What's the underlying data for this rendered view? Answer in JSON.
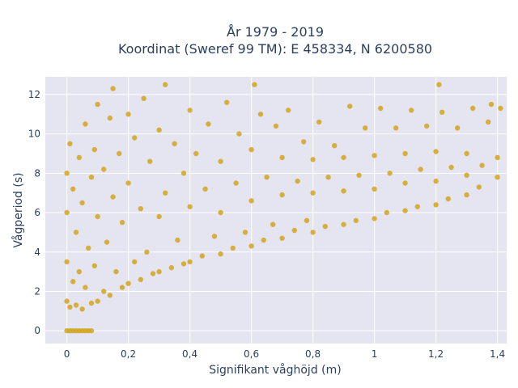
{
  "chart_data": {
    "type": "scatter",
    "title": "År 1979 - 2019",
    "subtitle": "Koordinat (Sweref 99 TM): E 458334, N 6200580",
    "xlabel": "Signifikant våghöjd (m)",
    "ylabel": "Vågperiod (s)",
    "xlim": [
      -0.07,
      1.43
    ],
    "ylim": [
      -0.65,
      12.9
    ],
    "x_ticks": [
      0,
      0.2,
      0.4,
      0.6,
      0.8,
      1,
      1.2,
      1.4
    ],
    "x_tick_labels": [
      "0",
      "0,2",
      "0,4",
      "0,6",
      "0,8",
      "1",
      "1,2",
      "1,4"
    ],
    "y_ticks": [
      0,
      2,
      4,
      6,
      8,
      10,
      12
    ],
    "y_tick_labels": [
      "0",
      "2",
      "4",
      "6",
      "8",
      "10",
      "12"
    ],
    "grid": true,
    "legend": "none",
    "marker_color": "#d4a521",
    "series": [
      {
        "values": [
          [
            0.0,
            1.5
          ],
          [
            0.0,
            3.5
          ],
          [
            0.0,
            6.0
          ],
          [
            0.0,
            8.0
          ],
          [
            0.01,
            1.2
          ],
          [
            0.01,
            9.5
          ],
          [
            0.02,
            2.5
          ],
          [
            0.02,
            7.2
          ],
          [
            0.0,
            0.0
          ],
          [
            0.01,
            0.0
          ],
          [
            0.02,
            0.0
          ],
          [
            0.03,
            0.0
          ],
          [
            0.04,
            0.0
          ],
          [
            0.05,
            0.0
          ],
          [
            0.06,
            0.0
          ],
          [
            0.07,
            0.0
          ],
          [
            0.08,
            0.0
          ],
          [
            0.03,
            1.3
          ],
          [
            0.03,
            5.0
          ],
          [
            0.04,
            3.0
          ],
          [
            0.04,
            8.8
          ],
          [
            0.05,
            1.1
          ],
          [
            0.05,
            6.5
          ],
          [
            0.06,
            2.2
          ],
          [
            0.06,
            10.5
          ],
          [
            0.07,
            4.2
          ],
          [
            0.08,
            1.4
          ],
          [
            0.08,
            7.8
          ],
          [
            0.09,
            3.3
          ],
          [
            0.09,
            9.2
          ],
          [
            0.1,
            1.5
          ],
          [
            0.1,
            5.8
          ],
          [
            0.1,
            11.5
          ],
          [
            0.12,
            2.0
          ],
          [
            0.12,
            8.2
          ],
          [
            0.13,
            4.5
          ],
          [
            0.14,
            1.8
          ],
          [
            0.14,
            10.8
          ],
          [
            0.15,
            6.8
          ],
          [
            0.15,
            12.3
          ],
          [
            0.16,
            3.0
          ],
          [
            0.17,
            9.0
          ],
          [
            0.18,
            2.2
          ],
          [
            0.18,
            5.5
          ],
          [
            0.2,
            2.4
          ],
          [
            0.2,
            7.5
          ],
          [
            0.2,
            11.0
          ],
          [
            0.22,
            3.5
          ],
          [
            0.22,
            9.8
          ],
          [
            0.24,
            2.6
          ],
          [
            0.24,
            6.2
          ],
          [
            0.25,
            11.8
          ],
          [
            0.26,
            4.0
          ],
          [
            0.27,
            8.6
          ],
          [
            0.28,
            2.9
          ],
          [
            0.3,
            3.0
          ],
          [
            0.3,
            5.8
          ],
          [
            0.3,
            10.2
          ],
          [
            0.32,
            7.0
          ],
          [
            0.32,
            12.5
          ],
          [
            0.34,
            3.2
          ],
          [
            0.35,
            9.5
          ],
          [
            0.36,
            4.6
          ],
          [
            0.38,
            3.4
          ],
          [
            0.38,
            8.0
          ],
          [
            0.4,
            3.5
          ],
          [
            0.4,
            6.3
          ],
          [
            0.4,
            11.2
          ],
          [
            0.42,
            9.0
          ],
          [
            0.44,
            3.8
          ],
          [
            0.45,
            7.2
          ],
          [
            0.46,
            10.5
          ],
          [
            0.48,
            4.8
          ],
          [
            0.5,
            3.9
          ],
          [
            0.5,
            6.0
          ],
          [
            0.5,
            8.6
          ],
          [
            0.52,
            11.6
          ],
          [
            0.54,
            4.2
          ],
          [
            0.55,
            7.5
          ],
          [
            0.56,
            10.0
          ],
          [
            0.58,
            5.0
          ],
          [
            0.6,
            4.3
          ],
          [
            0.6,
            6.6
          ],
          [
            0.6,
            9.2
          ],
          [
            0.61,
            12.5
          ],
          [
            0.63,
            11.0
          ],
          [
            0.64,
            4.6
          ],
          [
            0.65,
            7.8
          ],
          [
            0.67,
            5.4
          ],
          [
            0.68,
            10.4
          ],
          [
            0.7,
            4.7
          ],
          [
            0.7,
            6.9
          ],
          [
            0.7,
            8.8
          ],
          [
            0.72,
            11.2
          ],
          [
            0.74,
            5.1
          ],
          [
            0.75,
            7.6
          ],
          [
            0.77,
            9.6
          ],
          [
            0.78,
            5.6
          ],
          [
            0.8,
            5.0
          ],
          [
            0.8,
            7.0
          ],
          [
            0.8,
            8.7
          ],
          [
            0.82,
            10.6
          ],
          [
            0.84,
            5.3
          ],
          [
            0.85,
            7.8
          ],
          [
            0.87,
            9.4
          ],
          [
            0.9,
            5.4
          ],
          [
            0.9,
            7.1
          ],
          [
            0.9,
            8.8
          ],
          [
            0.92,
            11.4
          ],
          [
            0.94,
            5.6
          ],
          [
            0.95,
            7.9
          ],
          [
            0.97,
            10.3
          ],
          [
            1.0,
            5.7
          ],
          [
            1.0,
            7.2
          ],
          [
            1.0,
            8.9
          ],
          [
            1.02,
            11.3
          ],
          [
            1.04,
            6.0
          ],
          [
            1.05,
            8.0
          ],
          [
            1.07,
            10.3
          ],
          [
            1.1,
            6.1
          ],
          [
            1.1,
            7.5
          ],
          [
            1.1,
            9.0
          ],
          [
            1.12,
            11.2
          ],
          [
            1.14,
            6.3
          ],
          [
            1.15,
            8.2
          ],
          [
            1.17,
            10.4
          ],
          [
            1.2,
            6.4
          ],
          [
            1.2,
            7.6
          ],
          [
            1.2,
            9.1
          ],
          [
            1.21,
            12.5
          ],
          [
            1.22,
            11.1
          ],
          [
            1.24,
            6.7
          ],
          [
            1.25,
            8.3
          ],
          [
            1.27,
            10.3
          ],
          [
            1.3,
            6.9
          ],
          [
            1.3,
            7.9
          ],
          [
            1.3,
            9.0
          ],
          [
            1.32,
            11.3
          ],
          [
            1.34,
            7.3
          ],
          [
            1.35,
            8.4
          ],
          [
            1.37,
            10.6
          ],
          [
            1.38,
            11.5
          ],
          [
            1.4,
            7.8
          ],
          [
            1.4,
            8.8
          ],
          [
            1.41,
            11.3
          ]
        ]
      }
    ]
  }
}
